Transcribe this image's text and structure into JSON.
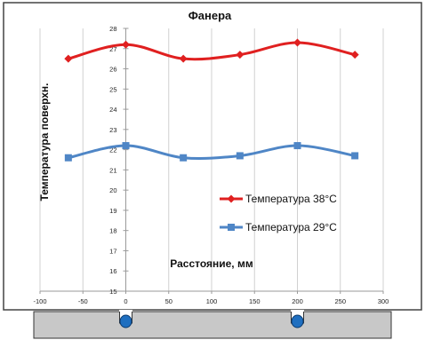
{
  "chart_data": {
    "type": "line",
    "title": "Фанера",
    "ylabel": "Температура поверхн.",
    "xlabel": "Расстояние, мм",
    "xlim": [
      -100,
      300
    ],
    "ylim": [
      15,
      28
    ],
    "x_ticks": [
      -100,
      -50,
      0,
      50,
      100,
      150,
      200,
      250,
      300
    ],
    "x_tick_labels": [
      "-100",
      "-50",
      "0",
      "50",
      "100",
      "150",
      "200",
      "250",
      "300"
    ],
    "y_ticks": [
      15,
      16,
      17,
      18,
      19,
      20,
      21,
      22,
      23,
      24,
      25,
      26,
      27,
      28
    ],
    "y_tick_labels": [
      "15",
      "16",
      "17",
      "18",
      "19",
      "20",
      "21",
      "22",
      "23",
      "24",
      "25",
      "26",
      "27",
      "28"
    ],
    "grid": "vertical",
    "legend_position": "bottom-right",
    "series": [
      {
        "name": "Температура 38°С",
        "color": "#e02020",
        "marker": "diamond",
        "x": [
          -67,
          0,
          67,
          133,
          200,
          267
        ],
        "y": [
          26.5,
          27.2,
          26.5,
          26.7,
          27.3,
          26.7
        ]
      },
      {
        "name": "Температура 29°С",
        "color": "#4f86c6",
        "marker": "square",
        "x": [
          -67,
          0,
          67,
          133,
          200,
          267
        ],
        "y": [
          21.6,
          22.2,
          21.6,
          21.7,
          22.2,
          21.7
        ]
      }
    ]
  },
  "panel": {
    "fill": "#c8c8c8",
    "grooves_x": [
      0,
      200
    ],
    "groove_fill": "#1f6fc0"
  }
}
